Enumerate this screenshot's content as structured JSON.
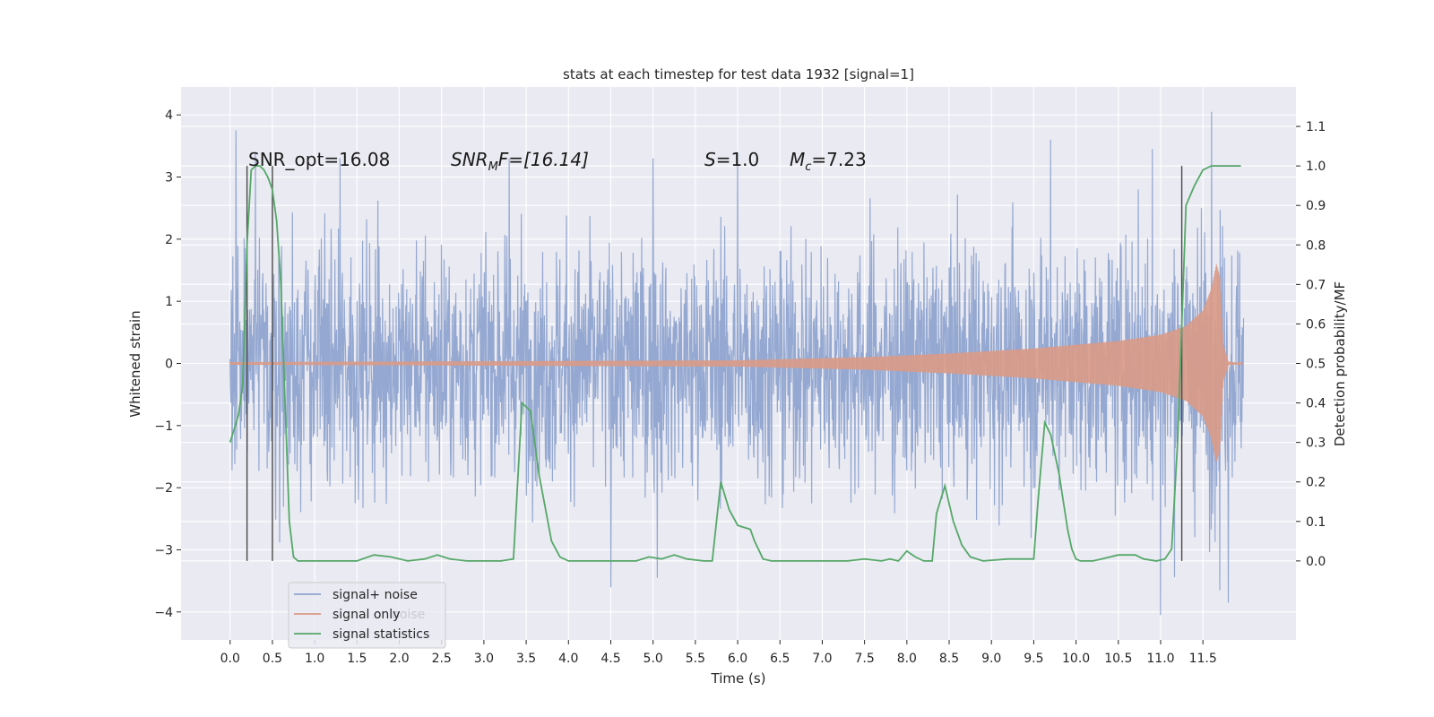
{
  "chart_data": {
    "type": "line",
    "title": "stats at each timestep for test data 1932 [signal=1]",
    "xlabel": "Time (s)",
    "ylabel": "Whitened strain",
    "y2label": "Detection probability/MF",
    "xlim": [
      -0.58,
      12.6
    ],
    "ylim": [
      -4.45,
      4.45
    ],
    "y2lim": [
      -0.2,
      1.2
    ],
    "xticks": [
      0.0,
      0.5,
      1.0,
      1.5,
      2.0,
      2.5,
      3.0,
      3.5,
      4.0,
      4.5,
      5.0,
      5.5,
      6.0,
      6.5,
      7.0,
      7.5,
      8.0,
      8.5,
      9.0,
      9.5,
      10.0,
      10.5,
      11.0,
      11.5
    ],
    "xtick_labels": [
      "0.0",
      "0.5",
      "1.0",
      "1.5",
      "2.0",
      "2.5",
      "3.0",
      "3.5",
      "4.0",
      "4.5",
      "5.0",
      "5.5",
      "6.0",
      "6.5",
      "7.0",
      "7.5",
      "8.0",
      "8.5",
      "9.0",
      "9.5",
      "10.0",
      "10.5",
      "11.0",
      "11.5"
    ],
    "yticks": [
      4,
      3,
      2,
      1,
      0,
      -1,
      -2,
      -3,
      -4
    ],
    "ytick_labels": [
      "4",
      "3",
      "2",
      "1",
      "0",
      "−1",
      "−2",
      "−3",
      "−4"
    ],
    "y2ticks": [
      1.1,
      1.0,
      0.9,
      0.8,
      0.7,
      0.6,
      0.5,
      0.4,
      0.3,
      0.2,
      0.1,
      0.0
    ],
    "y2tick_labels": [
      "1.1",
      "1.0",
      "0.9",
      "0.8",
      "0.7",
      "0.6",
      "0.5",
      "0.4",
      "0.3",
      "0.2",
      "0.1",
      "0.0"
    ],
    "grid": true,
    "legend_position": "lower-left",
    "series": [
      {
        "name": "signal+ noise",
        "color": "#8fa4cf",
        "axis": "left",
        "t_range": [
          0.0,
          11.98
        ],
        "envelope_typical": [
          -1.9,
          1.9
        ],
        "peaks": [
          [
            0.07,
            3.75
          ],
          [
            0.3,
            3.4
          ],
          [
            1.3,
            3.3
          ],
          [
            3.3,
            3.3
          ],
          [
            5.0,
            3.3
          ],
          [
            6.0,
            3.4
          ],
          [
            9.7,
            3.6
          ],
          [
            10.9,
            3.45
          ],
          [
            11.6,
            4.05
          ],
          [
            4.5,
            -3.6
          ],
          [
            5.05,
            -3.45
          ],
          [
            11.0,
            -4.05
          ],
          [
            11.8,
            -3.85
          ],
          [
            11.7,
            -3.65
          ]
        ]
      },
      {
        "name": "signal only",
        "color": "#d99a86",
        "axis": "left",
        "chirp_amplitude": [
          [
            0.0,
            0.02
          ],
          [
            6.0,
            0.05
          ],
          [
            7.5,
            0.1
          ],
          [
            8.5,
            0.16
          ],
          [
            9.5,
            0.24
          ],
          [
            10.5,
            0.36
          ],
          [
            11.0,
            0.46
          ],
          [
            11.3,
            0.6
          ],
          [
            11.5,
            0.85
          ],
          [
            11.6,
            1.2
          ],
          [
            11.66,
            1.6
          ],
          [
            11.7,
            1.4
          ],
          [
            11.74,
            0.3
          ],
          [
            11.8,
            0.03
          ],
          [
            11.98,
            0.0
          ]
        ]
      },
      {
        "name": "signal statistics",
        "color": "#55a868",
        "axis": "right",
        "points": [
          [
            0.0,
            0.3
          ],
          [
            0.1,
            0.37
          ],
          [
            0.15,
            0.45
          ],
          [
            0.2,
            0.8
          ],
          [
            0.25,
            0.99
          ],
          [
            0.3,
            1.0
          ],
          [
            0.35,
            1.0
          ],
          [
            0.4,
            0.99
          ],
          [
            0.45,
            0.97
          ],
          [
            0.5,
            0.94
          ],
          [
            0.55,
            0.86
          ],
          [
            0.6,
            0.7
          ],
          [
            0.65,
            0.4
          ],
          [
            0.7,
            0.1
          ],
          [
            0.75,
            0.01
          ],
          [
            0.8,
            0.0
          ],
          [
            1.5,
            0.0
          ],
          [
            1.7,
            0.015
          ],
          [
            1.9,
            0.01
          ],
          [
            2.1,
            0.0
          ],
          [
            2.3,
            0.005
          ],
          [
            2.45,
            0.015
          ],
          [
            2.6,
            0.005
          ],
          [
            2.8,
            0.0
          ],
          [
            3.2,
            0.0
          ],
          [
            3.35,
            0.005
          ],
          [
            3.45,
            0.4
          ],
          [
            3.55,
            0.38
          ],
          [
            3.65,
            0.22
          ],
          [
            3.8,
            0.05
          ],
          [
            3.9,
            0.01
          ],
          [
            4.0,
            0.0
          ],
          [
            4.8,
            0.0
          ],
          [
            4.95,
            0.01
          ],
          [
            5.1,
            0.005
          ],
          [
            5.25,
            0.015
          ],
          [
            5.4,
            0.005
          ],
          [
            5.6,
            0.0
          ],
          [
            5.7,
            0.0
          ],
          [
            5.8,
            0.2
          ],
          [
            5.9,
            0.13
          ],
          [
            6.0,
            0.09
          ],
          [
            6.15,
            0.08
          ],
          [
            6.2,
            0.05
          ],
          [
            6.3,
            0.005
          ],
          [
            6.4,
            0.0
          ],
          [
            7.3,
            0.0
          ],
          [
            7.5,
            0.005
          ],
          [
            7.7,
            0.0
          ],
          [
            7.8,
            0.005
          ],
          [
            7.9,
            0.0
          ],
          [
            8.0,
            0.025
          ],
          [
            8.1,
            0.01
          ],
          [
            8.2,
            0.0
          ],
          [
            8.3,
            0.0
          ],
          [
            8.35,
            0.12
          ],
          [
            8.45,
            0.19
          ],
          [
            8.55,
            0.1
          ],
          [
            8.65,
            0.04
          ],
          [
            8.75,
            0.01
          ],
          [
            8.9,
            0.0
          ],
          [
            9.2,
            0.005
          ],
          [
            9.5,
            0.005
          ],
          [
            9.55,
            0.15
          ],
          [
            9.63,
            0.35
          ],
          [
            9.7,
            0.32
          ],
          [
            9.8,
            0.22
          ],
          [
            9.9,
            0.08
          ],
          [
            9.95,
            0.03
          ],
          [
            10.0,
            0.005
          ],
          [
            10.05,
            0.0
          ],
          [
            10.2,
            0.0
          ],
          [
            10.3,
            0.005
          ],
          [
            10.5,
            0.015
          ],
          [
            10.7,
            0.015
          ],
          [
            10.8,
            0.005
          ],
          [
            10.95,
            0.0
          ],
          [
            11.05,
            0.005
          ],
          [
            11.13,
            0.03
          ],
          [
            11.2,
            0.3
          ],
          [
            11.25,
            0.6
          ],
          [
            11.3,
            0.9
          ],
          [
            11.4,
            0.95
          ],
          [
            11.5,
            0.99
          ],
          [
            11.6,
            1.0
          ],
          [
            11.7,
            1.0
          ],
          [
            11.95,
            1.0
          ]
        ]
      }
    ],
    "vertical_lines": [
      0.2,
      0.5,
      11.25
    ],
    "vertical_line_range": [
      0.0,
      1.0
    ],
    "annotations": {
      "snr_opt": "SNR_opt=16.08",
      "snr_mf_var": "SNR",
      "snr_mf_sub": "M",
      "snr_mf_tail": "F=[16.14]",
      "s_var": "S",
      "s_value": "=1.0",
      "mc_var": "M",
      "mc_sub": "c",
      "mc_value": "=7.23",
      "ghost_legend": "noise"
    }
  }
}
